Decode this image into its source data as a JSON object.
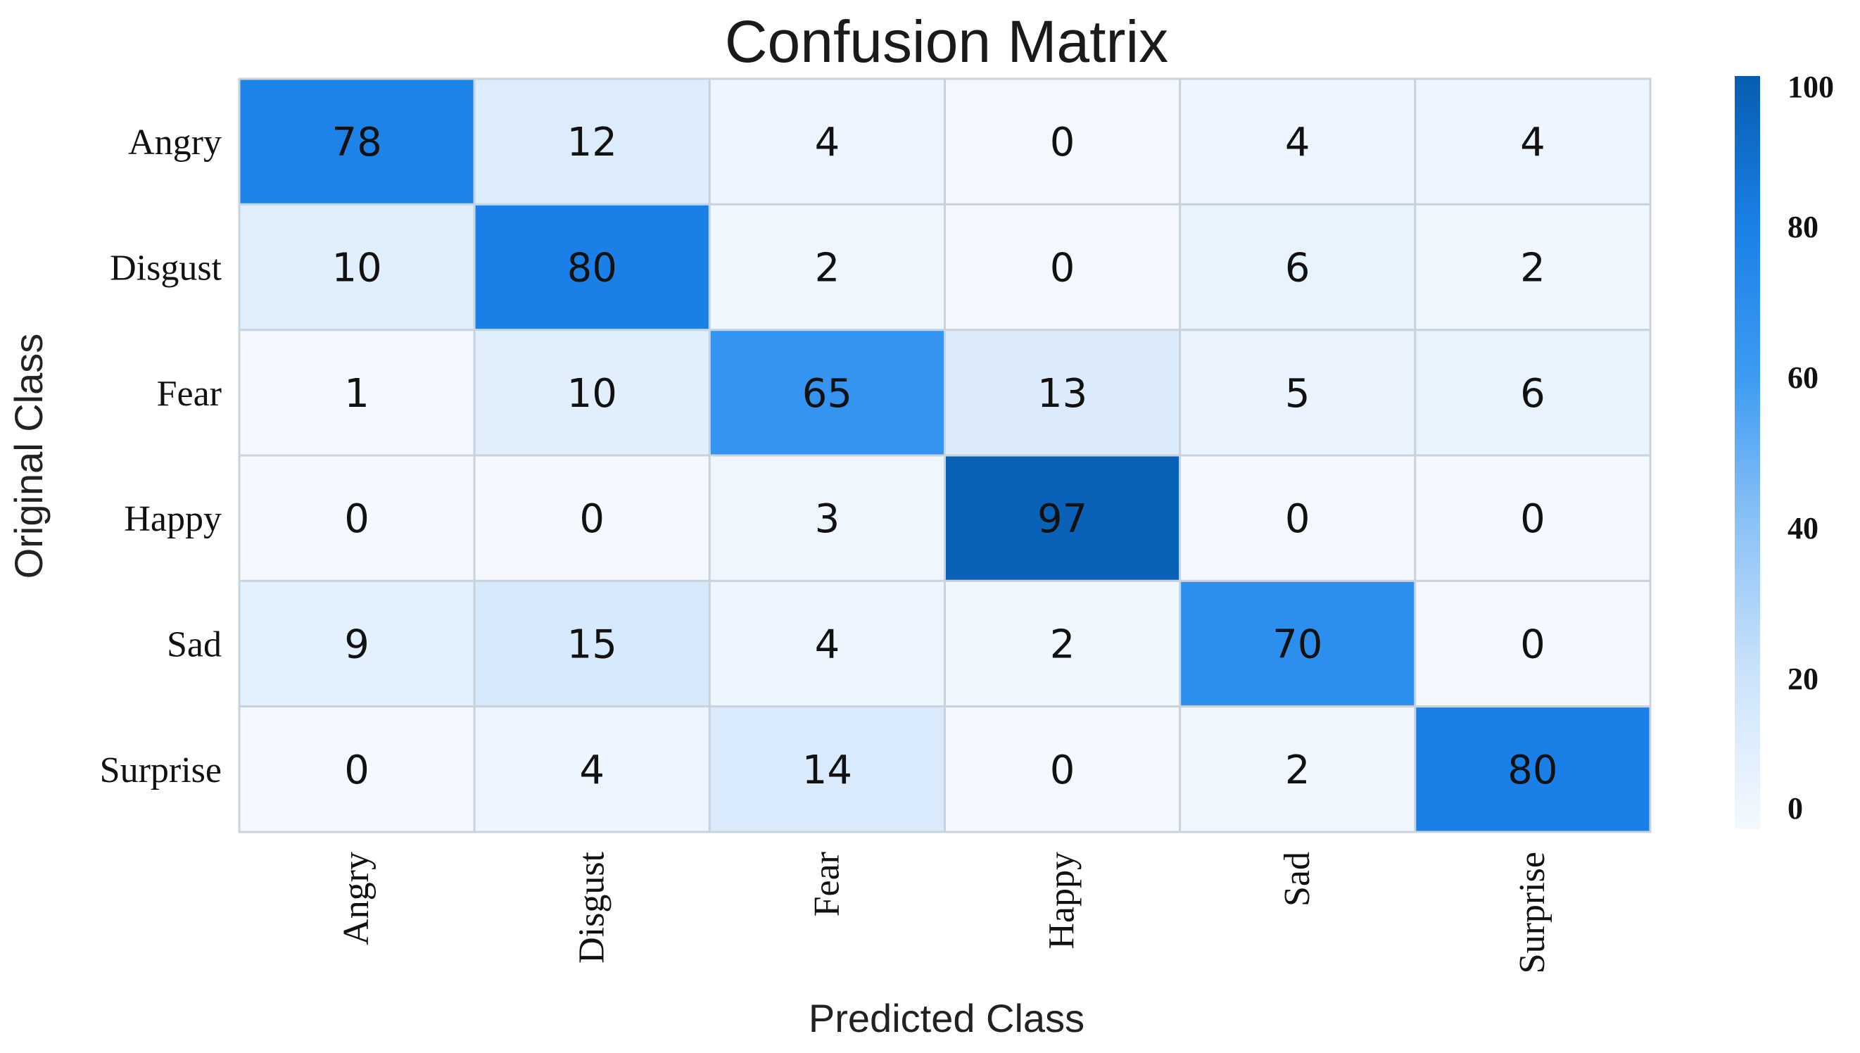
{
  "chart_data": {
    "type": "heatmap",
    "title": "Confusion Matrix",
    "xlabel": "Predicted Class",
    "ylabel": "Original Class",
    "rows": [
      "Angry",
      "Disgust",
      "Fear",
      "Happy",
      "Sad",
      "Surprise"
    ],
    "columns": [
      "Angry",
      "Disgust",
      "Fear",
      "Happy",
      "Sad",
      "Surprise"
    ],
    "values": [
      [
        78,
        12,
        4,
        0,
        4,
        4
      ],
      [
        10,
        80,
        2,
        0,
        6,
        2
      ],
      [
        1,
        10,
        65,
        13,
        5,
        6
      ],
      [
        0,
        0,
        3,
        97,
        0,
        0
      ],
      [
        9,
        15,
        4,
        2,
        70,
        0
      ],
      [
        0,
        4,
        14,
        0,
        2,
        80
      ]
    ],
    "colorbar": {
      "min": 0,
      "max": 100,
      "ticks": [
        "100",
        "80",
        "60",
        "40",
        "20",
        "0"
      ]
    },
    "colormap": [
      "#f5f9ff",
      "#cde4fb",
      "#8ec3f7",
      "#3d9bf2",
      "#1a80e8",
      "#075db0"
    ]
  }
}
